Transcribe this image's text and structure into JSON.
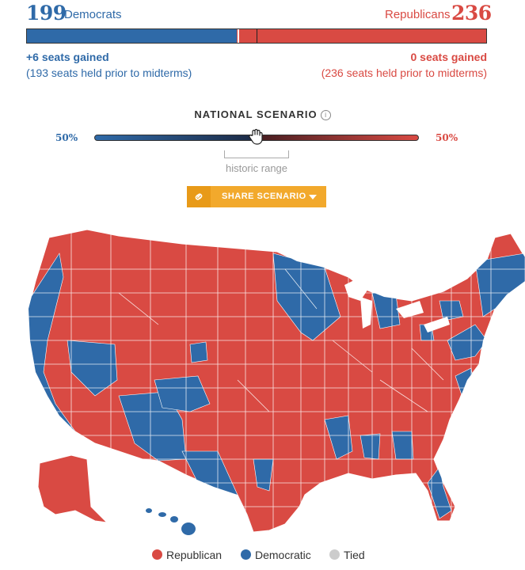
{
  "header": {
    "dem_seats": "199",
    "dem_label": "Democrats",
    "rep_label": "Republicans",
    "rep_seats": "236"
  },
  "seat_bar": {
    "dem_share": 0.4575,
    "majority_mark": 0.5,
    "colors": {
      "dem": "#2f6aa8",
      "rep": "#d94a43"
    }
  },
  "dem_summary": {
    "gain": "+6 seats gained",
    "prior": "(193 seats held prior to midterms)"
  },
  "rep_summary": {
    "gain": "0 seats gained",
    "prior": "(236 seats held prior to midterms)"
  },
  "scenario": {
    "title": "NATIONAL SCENARIO",
    "info_icon": "info-icon",
    "left_pct": "50%",
    "right_pct": "50%",
    "historic_label": "historic range",
    "slider_value": 0.5,
    "knob_icon": "hand-cursor-icon"
  },
  "share_button": {
    "label": "SHARE SCENARIO",
    "icon": "link-icon",
    "caret": "caret-down-icon"
  },
  "legend": [
    {
      "label": "Republican",
      "color": "#d94a43"
    },
    {
      "label": "Democratic",
      "color": "#2f6aa8"
    },
    {
      "label": "Tied",
      "color": "#cccccc"
    }
  ]
}
